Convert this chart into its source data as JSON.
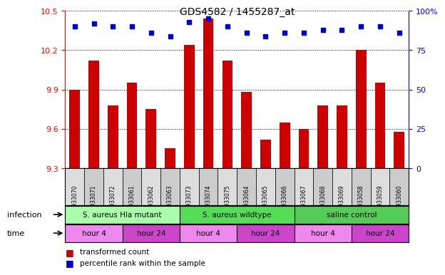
{
  "title": "GDS4582 / 1455287_at",
  "samples": [
    "GSM933070",
    "GSM933071",
    "GSM933072",
    "GSM933061",
    "GSM933062",
    "GSM933063",
    "GSM933073",
    "GSM933074",
    "GSM933075",
    "GSM933064",
    "GSM933065",
    "GSM933066",
    "GSM933067",
    "GSM933068",
    "GSM933069",
    "GSM933058",
    "GSM933059",
    "GSM933060"
  ],
  "bar_values": [
    9.9,
    10.12,
    9.78,
    9.95,
    9.75,
    9.45,
    10.24,
    10.44,
    10.12,
    9.88,
    9.52,
    9.65,
    9.6,
    9.78,
    9.78,
    10.2,
    9.95,
    9.58
  ],
  "dot_values": [
    90,
    92,
    90,
    90,
    86,
    84,
    93,
    95,
    90,
    86,
    84,
    86,
    86,
    88,
    88,
    90,
    90,
    86
  ],
  "ylim_left": [
    9.3,
    10.5
  ],
  "ylim_right": [
    0,
    100
  ],
  "yticks_left": [
    9.3,
    9.6,
    9.9,
    10.2,
    10.5
  ],
  "yticks_right": [
    0,
    25,
    50,
    75,
    100
  ],
  "bar_color": "#cc0000",
  "dot_color": "#0000cc",
  "infection_groups": [
    {
      "label": "S. aureus Hla mutant",
      "start": 0,
      "end": 6,
      "color": "#aaffaa"
    },
    {
      "label": "S. aureus wildtype",
      "start": 6,
      "end": 12,
      "color": "#55dd55"
    },
    {
      "label": "saline control",
      "start": 12,
      "end": 18,
      "color": "#55cc55"
    }
  ],
  "time_groups": [
    {
      "label": "hour 4",
      "start": 0,
      "end": 3,
      "color": "#ee88ee"
    },
    {
      "label": "hour 24",
      "start": 3,
      "end": 6,
      "color": "#cc44cc"
    },
    {
      "label": "hour 4",
      "start": 6,
      "end": 9,
      "color": "#ee88ee"
    },
    {
      "label": "hour 24",
      "start": 9,
      "end": 12,
      "color": "#cc44cc"
    },
    {
      "label": "hour 4",
      "start": 12,
      "end": 15,
      "color": "#ee88ee"
    },
    {
      "label": "hour 24",
      "start": 15,
      "end": 18,
      "color": "#cc44cc"
    }
  ],
  "legend_items": [
    {
      "label": "transformed count",
      "color": "#cc0000"
    },
    {
      "label": "percentile rank within the sample",
      "color": "#0000cc"
    }
  ],
  "background_color": "#ffffff",
  "tick_area_color": "#cccccc"
}
